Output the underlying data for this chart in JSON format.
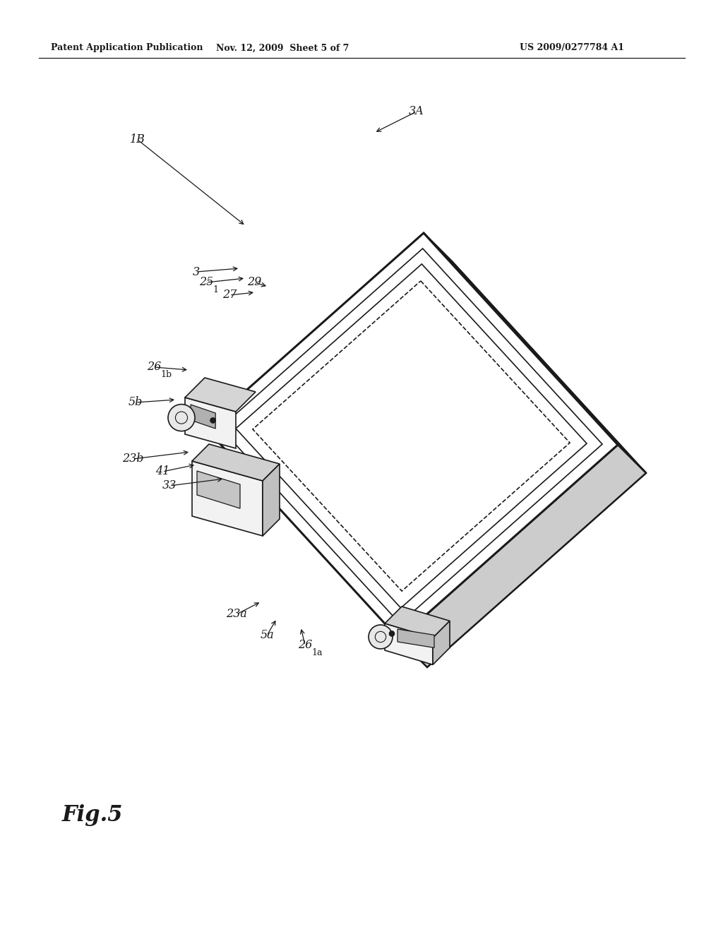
{
  "bg_color": "#ffffff",
  "line_color": "#1a1a1a",
  "fig_label": "Fig.5",
  "header_left": "Patent Application Publication",
  "header_mid": "Nov. 12, 2009  Sheet 5 of 7",
  "header_right": "US 2009/0277784 A1"
}
